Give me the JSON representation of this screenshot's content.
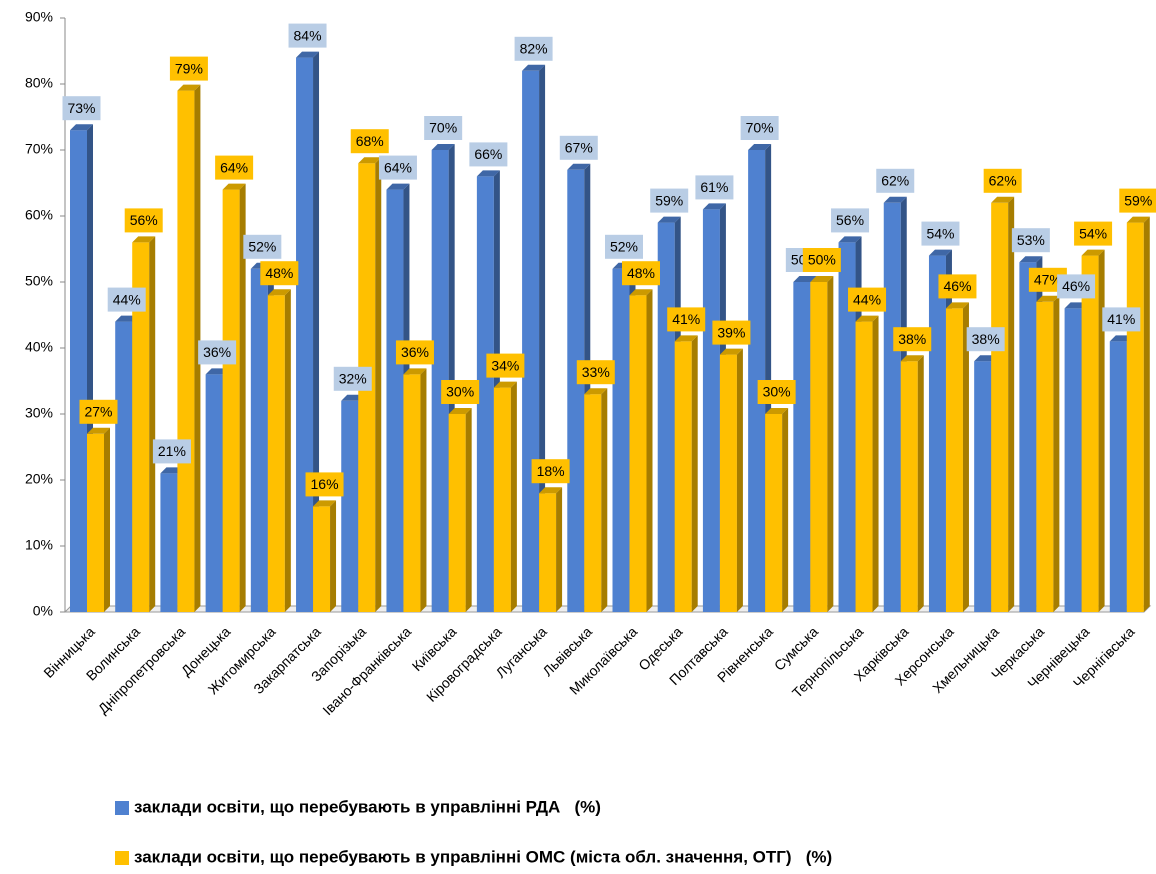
{
  "chart_data": {
    "type": "bar",
    "categories": [
      "Вінницька",
      "Волинська",
      "Дніпропетровська",
      "Донецька",
      "Житомирська",
      "Закарпатська",
      "Запорізька",
      "Івано-Франківська",
      "Київська",
      "Кіровоградська",
      "Луганська",
      "Львівська",
      "Миколаївська",
      "Одеська",
      "Полтавська",
      "Рівненська",
      "Сумська",
      "Тернопільська",
      "Харківська",
      "Херсонська",
      "Хмельницька",
      "Черкаська",
      "Чернівецька",
      "Чернігівська"
    ],
    "series": [
      {
        "name": "заклади освіти, що перебувають в управлінні РДА   (%)",
        "color": "#4f81d0",
        "values": [
          73,
          44,
          21,
          36,
          52,
          84,
          32,
          64,
          70,
          66,
          82,
          67,
          52,
          59,
          61,
          70,
          50,
          56,
          62,
          54,
          38,
          53,
          46,
          41
        ],
        "value_labels": [
          "73%",
          "44%",
          "21%",
          "36%",
          "52%",
          "84%",
          "32%",
          "64%",
          "70%",
          "66%",
          "82%",
          "67%",
          "52%",
          "59%",
          "61%",
          "70%",
          "50%",
          "56%",
          "62%",
          "54%",
          "38%",
          "53%",
          "46%",
          "41%"
        ]
      },
      {
        "name": "заклади освіти, що перебувають в управлінні ОМС (міста обл. значення, ОТГ)   (%)",
        "color": "#ffc000",
        "values": [
          27,
          56,
          79,
          64,
          48,
          16,
          68,
          36,
          30,
          34,
          18,
          33,
          48,
          41,
          39,
          30,
          50,
          44,
          38,
          46,
          62,
          47,
          54,
          59
        ],
        "value_labels": [
          "27%",
          "56%",
          "79%",
          "64%",
          "48%",
          "16%",
          "68%",
          "36%",
          "30%",
          "34%",
          "18%",
          "33%",
          "48%",
          "41%",
          "39%",
          "30%",
          "50%",
          "44%",
          "38%",
          "46%",
          "62%",
          "47%",
          "54%",
          "59%"
        ]
      }
    ],
    "ylim": [
      0,
      90
    ],
    "yticks": [
      {
        "value": 0,
        "label": "0%"
      },
      {
        "value": 10,
        "label": "10%"
      },
      {
        "value": 20,
        "label": "20%"
      },
      {
        "value": 30,
        "label": "30%"
      },
      {
        "value": 40,
        "label": "40%"
      },
      {
        "value": 50,
        "label": "50%"
      },
      {
        "value": 60,
        "label": "60%"
      },
      {
        "value": 70,
        "label": "70%"
      },
      {
        "value": 80,
        "label": "80%"
      },
      {
        "value": 90,
        "label": "90%"
      }
    ]
  }
}
